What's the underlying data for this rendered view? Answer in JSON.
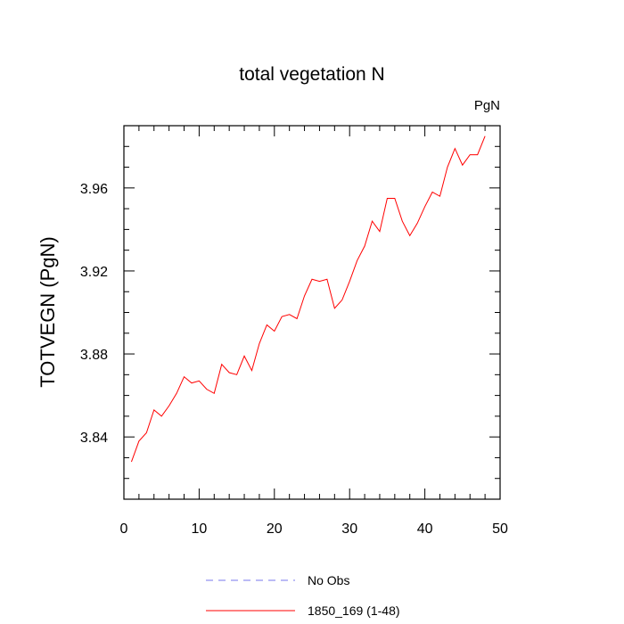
{
  "chart_data": {
    "type": "line",
    "title": "total vegetation N",
    "units_label": "PgN",
    "xlabel": "",
    "ylabel": "TOTVEGN  (PgN)",
    "xlim": [
      0,
      50
    ],
    "ylim": [
      3.81,
      3.99
    ],
    "x_ticks": [
      0,
      10,
      20,
      30,
      40,
      50
    ],
    "y_ticks": [
      3.84,
      3.88,
      3.92,
      3.96
    ],
    "y_tick_labels": [
      "3.84",
      "3.88",
      "3.92",
      "3.96"
    ],
    "x_tick_labels": [
      "0",
      "10",
      "20",
      "30",
      "40",
      "50"
    ],
    "grid": false,
    "legend_position": "bottom",
    "series": [
      {
        "name": "1850_169 (1-48)",
        "color": "#ff0000",
        "style": "solid",
        "x": [
          1,
          2,
          3,
          4,
          5,
          6,
          7,
          8,
          9,
          10,
          11,
          12,
          13,
          14,
          15,
          16,
          17,
          18,
          19,
          20,
          21,
          22,
          23,
          24,
          25,
          26,
          27,
          28,
          29,
          30,
          31,
          32,
          33,
          34,
          35,
          36,
          37,
          38,
          39,
          40,
          41,
          42,
          43,
          44,
          45,
          46,
          47,
          48
        ],
        "values": [
          3.828,
          3.838,
          3.842,
          3.853,
          3.85,
          3.855,
          3.861,
          3.869,
          3.866,
          3.867,
          3.863,
          3.861,
          3.875,
          3.871,
          3.87,
          3.879,
          3.872,
          3.885,
          3.894,
          3.891,
          3.898,
          3.899,
          3.897,
          3.908,
          3.916,
          3.915,
          3.916,
          3.902,
          3.906,
          3.915,
          3.925,
          3.932,
          3.944,
          3.939,
          3.955,
          3.955,
          3.944,
          3.937,
          3.943,
          3.951,
          3.958,
          3.956,
          3.97,
          3.979,
          3.971,
          3.976,
          3.976,
          3.985
        ]
      },
      {
        "name": "No Obs",
        "color": "#7777ee",
        "style": "dashed",
        "x": [],
        "values": []
      }
    ]
  }
}
